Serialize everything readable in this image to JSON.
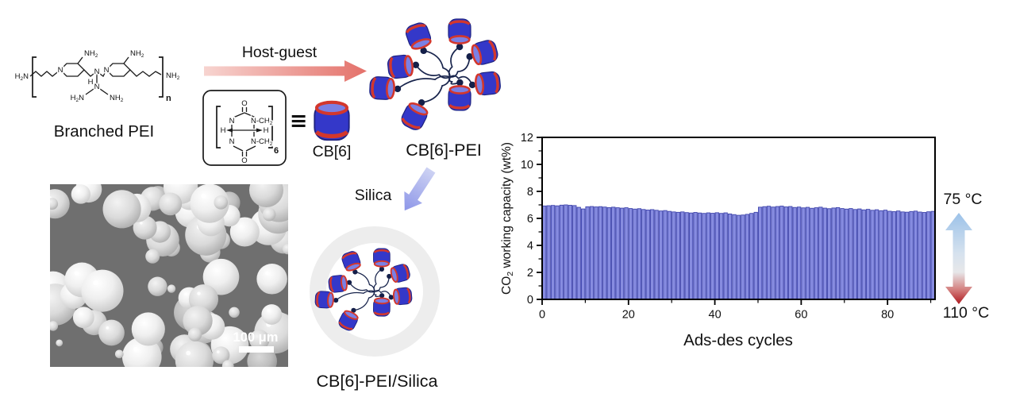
{
  "scheme": {
    "branched_pei": {
      "caption": "Branched PEI",
      "atoms": {
        "h2n": "H2N",
        "nh2": "NH2",
        "n": "N",
        "h": "H",
        "repeat": "n"
      }
    },
    "host_guest": {
      "caption": "Host-guest"
    },
    "cb6_formula": {
      "caption": "CB[6]",
      "equiv": "≡",
      "atoms": {
        "o": "O",
        "n": "N",
        "nch2": "N-CH2",
        "h": "H",
        "repeat": "6"
      }
    },
    "cb6_pei": {
      "caption": "CB[6]-PEI"
    },
    "silica_step": {
      "caption": "Silica"
    },
    "composite": {
      "caption": "CB[6]-PEI/Silica"
    },
    "micrograph": {
      "scale_label": "100 μm"
    }
  },
  "temperature_swing": {
    "adsorption": "75 °C",
    "desorption": "110 °C"
  },
  "colors": {
    "barrel_body": "#3438c9",
    "barrel_rim": "#d3372c",
    "polymer_chain": "#19254d",
    "host_guest_arrow_start": "#f7d4d0",
    "host_guest_arrow_end": "#e4716a",
    "silica_arrow_start": "#cdd2f3",
    "silica_arrow_end": "#8d96e8",
    "silica_shell": "#ededed",
    "cold_end": "#9cc2e9",
    "hot_end": "#ae1a20",
    "micrograph_bg": "#6f6f6f"
  },
  "chart_data": {
    "type": "bar",
    "title": "",
    "xlabel": "Ads-des cycles",
    "ylabel": "CO2 working capacity (wt%)",
    "xlim": [
      0,
      91
    ],
    "ylim": [
      0,
      12
    ],
    "x_ticks": [
      0,
      20,
      40,
      60,
      80
    ],
    "x_minor_ticks": [
      10,
      30,
      50,
      70,
      90
    ],
    "y_ticks": [
      0,
      2,
      4,
      6,
      8,
      10,
      12
    ],
    "y_minor_ticks": [
      1,
      3,
      5,
      7,
      9,
      11
    ],
    "grid": false,
    "bar_color": "#878ce0",
    "bar_edge_color": "#3f45ac",
    "n_cycles": 91,
    "values": [
      6.92,
      6.94,
      6.96,
      6.93,
      6.98,
      7.0,
      6.97,
      6.95,
      6.82,
      6.7,
      6.86,
      6.88,
      6.85,
      6.87,
      6.84,
      6.8,
      6.83,
      6.79,
      6.76,
      6.79,
      6.73,
      6.69,
      6.72,
      6.66,
      6.62,
      6.65,
      6.6,
      6.55,
      6.58,
      6.52,
      6.48,
      6.45,
      6.48,
      6.43,
      6.4,
      6.44,
      6.4,
      6.37,
      6.41,
      6.38,
      6.42,
      6.37,
      6.41,
      6.33,
      6.28,
      6.23,
      6.25,
      6.3,
      6.37,
      6.45,
      6.83,
      6.87,
      6.9,
      6.84,
      6.88,
      6.91,
      6.85,
      6.88,
      6.81,
      6.84,
      6.78,
      6.82,
      6.75,
      6.79,
      6.83,
      6.76,
      6.72,
      6.77,
      6.8,
      6.73,
      6.69,
      6.73,
      6.66,
      6.7,
      6.63,
      6.67,
      6.6,
      6.64,
      6.57,
      6.61,
      6.53,
      6.5,
      6.55,
      6.48,
      6.46,
      6.51,
      6.54,
      6.47,
      6.44,
      6.49,
      6.52
    ]
  }
}
